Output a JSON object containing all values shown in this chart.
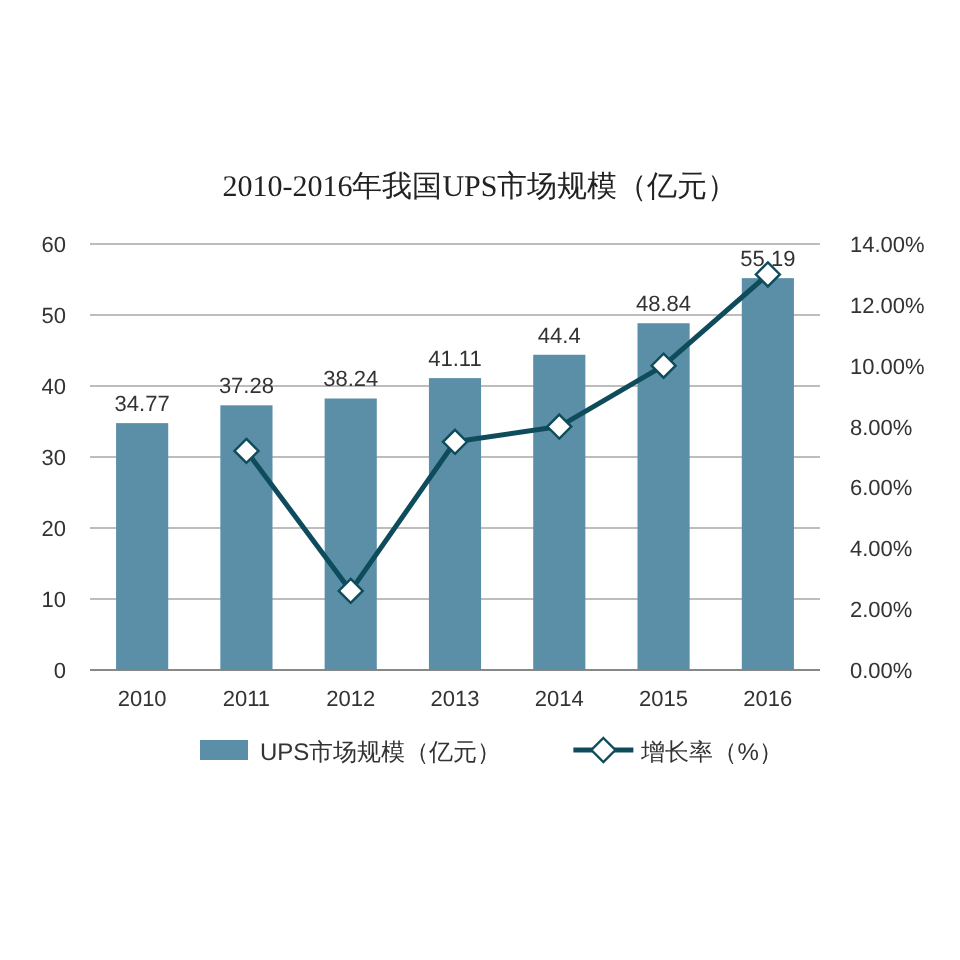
{
  "chart_data": {
    "type": "bar",
    "title": "2010-2016年我国UPS市场规模（亿元）",
    "categories": [
      "2010",
      "2011",
      "2012",
      "2013",
      "2014",
      "2015",
      "2016"
    ],
    "series": [
      {
        "name": "UPS市场规模（亿元）",
        "color": "#5b8fa8",
        "values": [
          34.77,
          37.28,
          38.24,
          41.11,
          44.4,
          48.84,
          55.19
        ],
        "value_labels": [
          "34.77",
          "37.28",
          "38.24",
          "41.11",
          "44.4",
          "48.84",
          "55.19"
        ]
      },
      {
        "name": "增长率（%）",
        "type": "line",
        "axis": "y2",
        "color": "#0e4c5c",
        "marker": "diamond",
        "values": [
          null,
          7.2,
          2.6,
          7.5,
          8.0,
          10.0,
          13.0
        ]
      }
    ],
    "ylim": [
      0,
      60
    ],
    "yticks": [
      0,
      10,
      20,
      30,
      40,
      50,
      60
    ],
    "y2lim": [
      0,
      14
    ],
    "y2ticks": [
      {
        "value": 0,
        "label": "0.00%"
      },
      {
        "value": 2,
        "label": "2.00%"
      },
      {
        "value": 4,
        "label": "4.00%"
      },
      {
        "value": 6,
        "label": "6.00%"
      },
      {
        "value": 8,
        "label": "8.00%"
      },
      {
        "value": 10,
        "label": "10.00%"
      },
      {
        "value": 12,
        "label": "12.00%"
      },
      {
        "value": 14,
        "label": "14.00%"
      }
    ],
    "grid": "y",
    "legend": "bottom"
  }
}
